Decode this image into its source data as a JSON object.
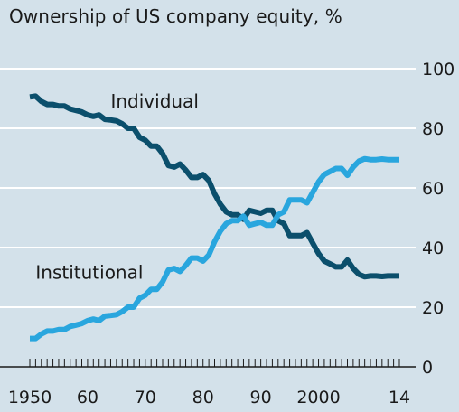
{
  "chart_data": {
    "type": "line",
    "title": "Ownership of US company equity, %",
    "xlabel": "",
    "ylabel": "",
    "xlim": [
      1950,
      2014
    ],
    "ylim": [
      0,
      100
    ],
    "y_ticks": [
      0,
      20,
      40,
      60,
      80,
      100
    ],
    "x_tick_labels": [
      {
        "year": 1950,
        "label": "1950"
      },
      {
        "year": 1960,
        "label": "60"
      },
      {
        "year": 1970,
        "label": "70"
      },
      {
        "year": 1980,
        "label": "80"
      },
      {
        "year": 1990,
        "label": "90"
      },
      {
        "year": 2000,
        "label": "2000"
      },
      {
        "year": 2014,
        "label": "14"
      }
    ],
    "y_axis_position": "right",
    "grid": true,
    "series": [
      {
        "name": "Individual",
        "color": "#0b4f6c",
        "label_year": 1964,
        "label_value": 87,
        "points": [
          [
            1950,
            90.5
          ],
          [
            1951,
            90.8
          ],
          [
            1952,
            89
          ],
          [
            1953,
            88
          ],
          [
            1954,
            88
          ],
          [
            1955,
            87.5
          ],
          [
            1956,
            87.5
          ],
          [
            1957,
            86.5
          ],
          [
            1958,
            86
          ],
          [
            1959,
            85.5
          ],
          [
            1960,
            84.5
          ],
          [
            1961,
            84
          ],
          [
            1962,
            84.5
          ],
          [
            1963,
            83
          ],
          [
            1964,
            82.8
          ],
          [
            1965,
            82.5
          ],
          [
            1966,
            81.5
          ],
          [
            1967,
            80
          ],
          [
            1968,
            80
          ],
          [
            1969,
            77
          ],
          [
            1970,
            76
          ],
          [
            1971,
            74
          ],
          [
            1972,
            74
          ],
          [
            1973,
            71.5
          ],
          [
            1974,
            67.5
          ],
          [
            1975,
            67
          ],
          [
            1976,
            68
          ],
          [
            1977,
            66
          ],
          [
            1978,
            63.5
          ],
          [
            1979,
            63.5
          ],
          [
            1980,
            64.5
          ],
          [
            1981,
            62.5
          ],
          [
            1982,
            58
          ],
          [
            1983,
            54.5
          ],
          [
            1984,
            52
          ],
          [
            1985,
            51
          ],
          [
            1986,
            51
          ],
          [
            1987,
            49.5
          ],
          [
            1988,
            52.5
          ],
          [
            1989,
            52
          ],
          [
            1990,
            51.5
          ],
          [
            1991,
            52.5
          ],
          [
            1992,
            52.5
          ],
          [
            1993,
            49
          ],
          [
            1994,
            48
          ],
          [
            1995,
            44
          ],
          [
            1996,
            44
          ],
          [
            1997,
            44
          ],
          [
            1998,
            45
          ],
          [
            1999,
            41.5
          ],
          [
            2000,
            38
          ],
          [
            2001,
            35.5
          ],
          [
            2002,
            34.5
          ],
          [
            2003,
            33.5
          ],
          [
            2004,
            33.5
          ],
          [
            2005,
            35.8
          ],
          [
            2006,
            33
          ],
          [
            2007,
            31
          ],
          [
            2008,
            30.2
          ],
          [
            2009,
            30.5
          ],
          [
            2010,
            30.5
          ],
          [
            2011,
            30.3
          ],
          [
            2012,
            30.5
          ],
          [
            2013,
            30.5
          ],
          [
            2014,
            30.5
          ]
        ]
      },
      {
        "name": "Institutional",
        "color": "#29a6de",
        "label_year": 1951,
        "label_value": 29.5,
        "points": [
          [
            1950,
            9.5
          ],
          [
            1951,
            9.5
          ],
          [
            1952,
            11
          ],
          [
            1953,
            12
          ],
          [
            1954,
            12
          ],
          [
            1955,
            12.5
          ],
          [
            1956,
            12.5
          ],
          [
            1957,
            13.5
          ],
          [
            1958,
            14
          ],
          [
            1959,
            14.5
          ],
          [
            1960,
            15.5
          ],
          [
            1961,
            16
          ],
          [
            1962,
            15.5
          ],
          [
            1963,
            17
          ],
          [
            1964,
            17.2
          ],
          [
            1965,
            17.5
          ],
          [
            1966,
            18.5
          ],
          [
            1967,
            20
          ],
          [
            1968,
            20
          ],
          [
            1969,
            23
          ],
          [
            1970,
            24
          ],
          [
            1971,
            26
          ],
          [
            1972,
            26
          ],
          [
            1973,
            28.5
          ],
          [
            1974,
            32.5
          ],
          [
            1975,
            33
          ],
          [
            1976,
            32
          ],
          [
            1977,
            34
          ],
          [
            1978,
            36.5
          ],
          [
            1979,
            36.5
          ],
          [
            1980,
            35.5
          ],
          [
            1981,
            37.5
          ],
          [
            1982,
            42
          ],
          [
            1983,
            45.5
          ],
          [
            1984,
            48
          ],
          [
            1985,
            49
          ],
          [
            1986,
            49
          ],
          [
            1987,
            50.5
          ],
          [
            1988,
            47.5
          ],
          [
            1989,
            48
          ],
          [
            1990,
            48.5
          ],
          [
            1991,
            47.5
          ],
          [
            1992,
            47.5
          ],
          [
            1993,
            51
          ],
          [
            1994,
            52
          ],
          [
            1995,
            56
          ],
          [
            1996,
            56
          ],
          [
            1997,
            56
          ],
          [
            1998,
            55
          ],
          [
            1999,
            58.5
          ],
          [
            2000,
            62
          ],
          [
            2001,
            64.5
          ],
          [
            2002,
            65.5
          ],
          [
            2003,
            66.5
          ],
          [
            2004,
            66.5
          ],
          [
            2005,
            64.2
          ],
          [
            2006,
            67
          ],
          [
            2007,
            69
          ],
          [
            2008,
            69.8
          ],
          [
            2009,
            69.5
          ],
          [
            2010,
            69.5
          ],
          [
            2011,
            69.7
          ],
          [
            2012,
            69.5
          ],
          [
            2013,
            69.5
          ],
          [
            2014,
            69.5
          ]
        ]
      }
    ]
  }
}
